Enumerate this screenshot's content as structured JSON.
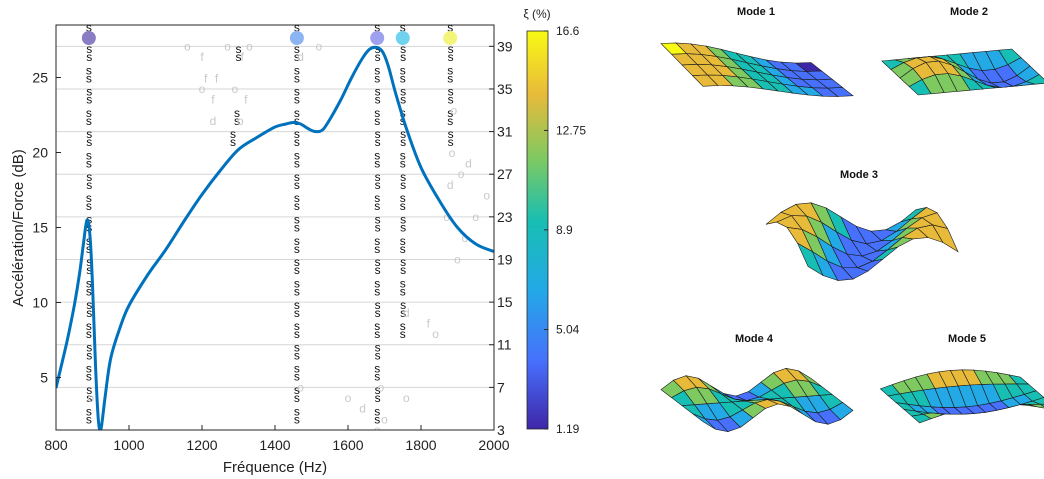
{
  "chart_data": [
    {
      "type": "line",
      "title": "",
      "xlabel": "Fréquence (Hz)",
      "ylabel": "Accélération/Force (dB)",
      "y2label": "",
      "xlim": [
        800,
        2000
      ],
      "ylim": [
        1.5,
        28.5
      ],
      "y2lim": [
        3,
        41
      ],
      "xticks": [
        "800",
        "1000",
        "1200",
        "1400",
        "1600",
        "1800",
        "2000"
      ],
      "yticks": [
        "5",
        "10",
        "15",
        "20",
        "25"
      ],
      "y2ticks": [
        "3",
        "7",
        "11",
        "15",
        "19",
        "23",
        "27",
        "31",
        "35",
        "39"
      ],
      "line_color": "#0072BD",
      "grid_y2": true,
      "series": [
        {
          "x": [
            800,
            830,
            850,
            865,
            875,
            885,
            893,
            900,
            908,
            915,
            920,
            925,
            935,
            950,
            975,
            1000,
            1050,
            1100,
            1150,
            1200,
            1250,
            1300,
            1350,
            1400,
            1430,
            1450,
            1470,
            1490,
            1510,
            1530,
            1550,
            1580,
            1610,
            1640,
            1660,
            1680,
            1695,
            1710,
            1730,
            1760,
            1800,
            1850,
            1900,
            1950,
            2000
          ],
          "y": [
            4.3,
            7.4,
            9.8,
            12.0,
            13.9,
            15.5,
            14.5,
            11.2,
            6.0,
            2.5,
            1.5,
            1.8,
            3.8,
            6.3,
            8.3,
            9.8,
            11.8,
            13.5,
            15.4,
            17.2,
            18.8,
            20.2,
            21.0,
            21.7,
            21.9,
            22.0,
            21.9,
            21.6,
            21.4,
            21.5,
            22.2,
            23.5,
            25.0,
            26.3,
            26.9,
            27.0,
            26.7,
            25.8,
            24.0,
            21.6,
            19.0,
            16.8,
            15.0,
            13.9,
            13.4
          ]
        }
      ],
      "stabilization": {
        "y2": [
          4,
          6,
          8,
          10,
          12,
          14,
          16,
          18,
          20,
          22,
          24,
          26,
          28,
          30,
          32,
          34,
          36,
          38,
          40
        ],
        "x": [
          [
            890,
            1285,
            1460,
            1680,
            1750,
            1880
          ],
          [
            891,
            1283,
            1460,
            1681,
            1751,
            1881
          ],
          [
            890,
            1282,
            1460,
            1680,
            1750,
            1880
          ],
          [
            891,
            1230,
            1460,
            1681,
            1751,
            1881
          ],
          [
            890,
            1240,
            1460,
            1680,
            1750,
            1880
          ],
          [
            891,
            1250,
            1460,
            1681,
            1751,
            1881
          ],
          [
            890,
            1255,
            1460,
            1680,
            1750,
            1880
          ],
          [
            891,
            1265,
            1460,
            1681,
            1751,
            1881
          ],
          [
            890,
            1275,
            1460,
            1680,
            1750,
            1880
          ],
          [
            891,
            1285,
            1460,
            1681,
            1751,
            1881
          ],
          [
            890,
            1290,
            1460,
            1680,
            1750,
            1880
          ],
          [
            891,
            1294,
            1460,
            1681,
            1751,
            1881
          ],
          [
            890,
            1302,
            1460,
            1680,
            1750,
            1880
          ],
          [
            891,
            1285,
            1460,
            1681,
            1751,
            1881
          ],
          [
            890,
            1296,
            1460,
            1680,
            1750,
            1880
          ],
          [
            891,
            1290,
            1460,
            1681,
            1751,
            1881
          ],
          [
            890,
            1270,
            1460,
            1680,
            1750,
            1880
          ],
          [
            891,
            1300,
            1460,
            1681,
            1751,
            1881
          ],
          [
            890,
            1305,
            1460,
            1680,
            1750,
            1880
          ]
        ],
        "s": [
          [
            1,
            0,
            1,
            1,
            0,
            0
          ],
          [
            1,
            0,
            1,
            1,
            0,
            0
          ],
          [
            1,
            0,
            1,
            1,
            0,
            0
          ],
          [
            1,
            0,
            1,
            1,
            0,
            0
          ],
          [
            1,
            0,
            1,
            1,
            1,
            0
          ],
          [
            1,
            0,
            1,
            1,
            1,
            0
          ],
          [
            1,
            0,
            1,
            1,
            1,
            0
          ],
          [
            1,
            0,
            1,
            1,
            1,
            0
          ],
          [
            1,
            0,
            1,
            1,
            1,
            0
          ],
          [
            1,
            0,
            1,
            1,
            1,
            0
          ],
          [
            1,
            0,
            1,
            1,
            1,
            0
          ],
          [
            1,
            0,
            1,
            1,
            1,
            0
          ],
          [
            1,
            0,
            1,
            1,
            1,
            0
          ],
          [
            1,
            1,
            1,
            1,
            1,
            1
          ],
          [
            1,
            1,
            1,
            1,
            1,
            1
          ],
          [
            1,
            0,
            1,
            1,
            1,
            1
          ],
          [
            1,
            0,
            1,
            1,
            1,
            1
          ],
          [
            1,
            1,
            1,
            1,
            1,
            1
          ],
          [
            1,
            0,
            1,
            1,
            1,
            1
          ]
        ],
        "gray_marks": [
          {
            "x": 1160,
            "y2": 39,
            "m": "o"
          },
          {
            "x": 1200,
            "y2": 38,
            "m": "f"
          },
          {
            "x": 1270,
            "y2": 39,
            "m": "o"
          },
          {
            "x": 1310,
            "y2": 38,
            "m": "f"
          },
          {
            "x": 1240,
            "y2": 36,
            "m": "f"
          },
          {
            "x": 1210,
            "y2": 36,
            "m": "f"
          },
          {
            "x": 1290,
            "y2": 35,
            "m": "o"
          },
          {
            "x": 1200,
            "y2": 35,
            "m": "o"
          },
          {
            "x": 1230,
            "y2": 34,
            "m": "f"
          },
          {
            "x": 1320,
            "y2": 34,
            "m": "f"
          },
          {
            "x": 1330,
            "y2": 39,
            "m": "o"
          },
          {
            "x": 1520,
            "y2": 39,
            "m": "o"
          },
          {
            "x": 1230,
            "y2": 32,
            "m": "d"
          },
          {
            "x": 1305,
            "y2": 32,
            "m": "o"
          },
          {
            "x": 1470,
            "y2": 38,
            "m": "d"
          },
          {
            "x": 1890,
            "y2": 33,
            "m": "o"
          },
          {
            "x": 1885,
            "y2": 29,
            "m": "o"
          },
          {
            "x": 1910,
            "y2": 27,
            "m": "o"
          },
          {
            "x": 1930,
            "y2": 28,
            "m": "d"
          },
          {
            "x": 1880,
            "y2": 26,
            "m": "d"
          },
          {
            "x": 1980,
            "y2": 25,
            "m": "o"
          },
          {
            "x": 1870,
            "y2": 23,
            "m": "o"
          },
          {
            "x": 1950,
            "y2": 23,
            "m": "o"
          },
          {
            "x": 1920,
            "y2": 21,
            "m": "o"
          },
          {
            "x": 1900,
            "y2": 19,
            "m": "o"
          },
          {
            "x": 1760,
            "y2": 14,
            "m": "d"
          },
          {
            "x": 1820,
            "y2": 13,
            "m": "f"
          },
          {
            "x": 1840,
            "y2": 12,
            "m": "o"
          },
          {
            "x": 1600,
            "y2": 6,
            "m": "o"
          },
          {
            "x": 1640,
            "y2": 5,
            "m": "d"
          },
          {
            "x": 1690,
            "y2": 7,
            "m": "o"
          },
          {
            "x": 1700,
            "y2": 4,
            "m": "o"
          },
          {
            "x": 1680,
            "y2": 3,
            "m": "o"
          },
          {
            "x": 1760,
            "y2": 6,
            "m": "o"
          },
          {
            "x": 1470,
            "y2": 7,
            "m": "o"
          },
          {
            "x": 895,
            "y2": 6,
            "m": "o"
          }
        ]
      },
      "modes": [
        {
          "x": 890,
          "color": "#8a7dc4"
        },
        {
          "x": 1460,
          "color": "#8ab5f2"
        },
        {
          "x": 1680,
          "color": "#9ea1ee"
        },
        {
          "x": 1750,
          "color": "#6fd2ee"
        },
        {
          "x": 1880,
          "color": "#f4f47b"
        }
      ]
    },
    {
      "type": "colorbar",
      "label": "ξ (%)",
      "range": [
        1.19,
        16.6
      ],
      "ticks": [
        "1.19",
        "5.04",
        "8.9",
        "12.75",
        "16.6"
      ],
      "colors": [
        "#3e26a8",
        "#4770fd",
        "#23a9e6",
        "#17beb3",
        "#7fc961",
        "#e8ba3a",
        "#f9fa14"
      ]
    }
  ],
  "mode_shapes": [
    {
      "title": "Mode 1"
    },
    {
      "title": "Mode 2"
    },
    {
      "title": "Mode 3"
    },
    {
      "title": "Mode 4"
    },
    {
      "title": "Mode 5"
    }
  ]
}
